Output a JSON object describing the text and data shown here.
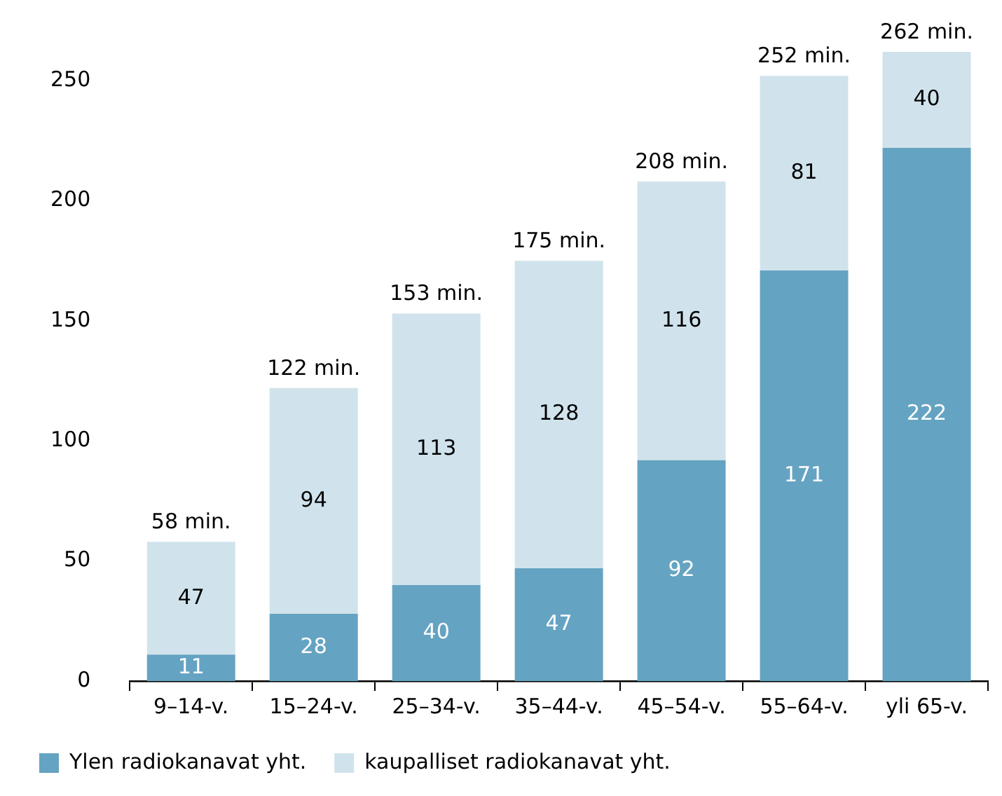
{
  "chart_data": {
    "type": "bar",
    "stacked": true,
    "categories": [
      "9–14-v.",
      "15–24-v.",
      "25–34-v.",
      "35–44-v.",
      "45–54-v.",
      "55–64-v.",
      "yli 65-v."
    ],
    "series": [
      {
        "name": "Ylen radiokanavat yht.",
        "color": "#65a3c2",
        "values": [
          11,
          28,
          40,
          47,
          92,
          171,
          222
        ]
      },
      {
        "name": "kaupalliset radiokanavat yht.",
        "color": "#d0e3ec",
        "values": [
          47,
          94,
          113,
          128,
          116,
          81,
          40
        ]
      }
    ],
    "ylim": [
      0,
      262
    ],
    "yticks": [
      0,
      50,
      100,
      150,
      200,
      250
    ],
    "grid": false,
    "legend": "bottom left",
    "data_labels": true,
    "totals": [
      "58 min.",
      "122 min.",
      "153 min.",
      "175 min.",
      "208 min.",
      "252 min.",
      "262 min."
    ]
  }
}
